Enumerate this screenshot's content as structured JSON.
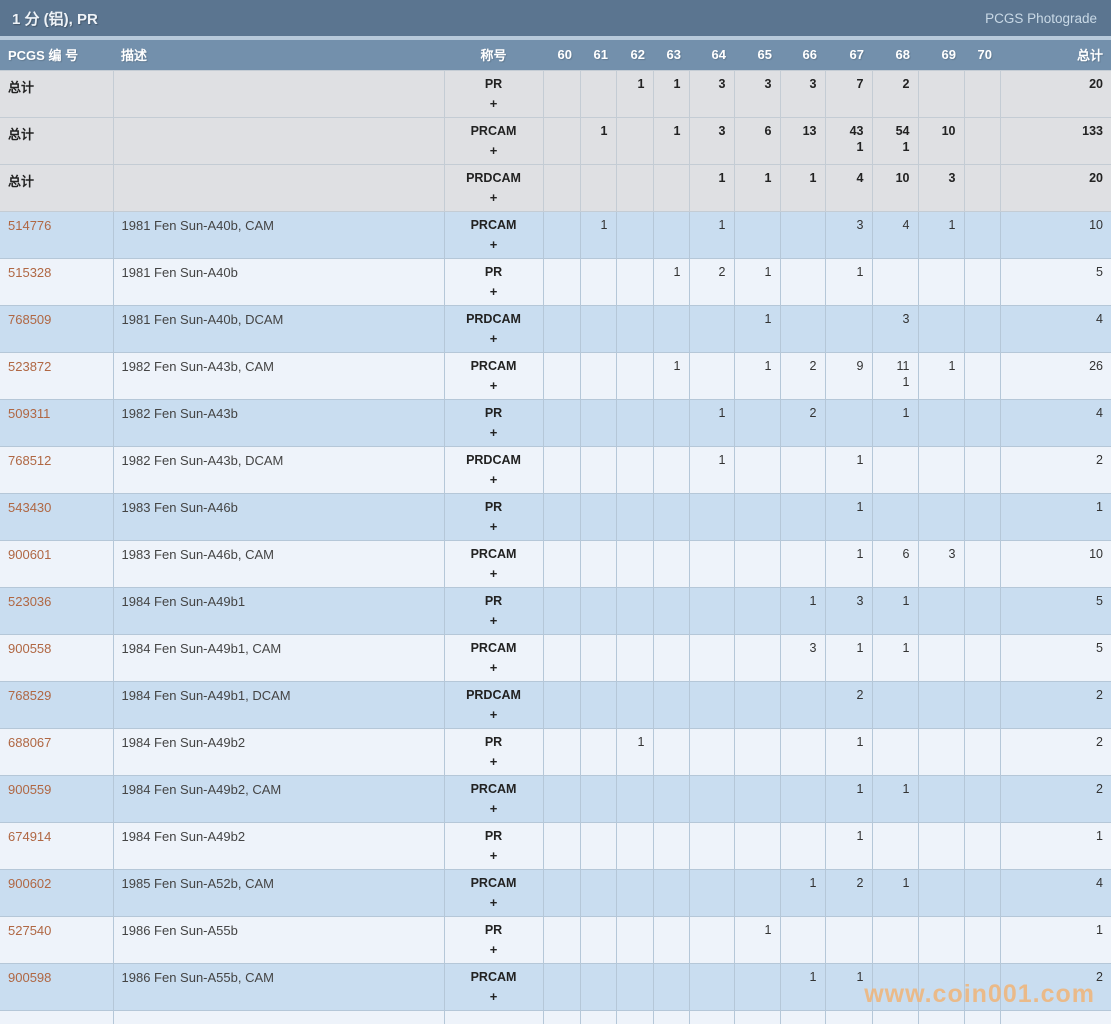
{
  "title_bar": {
    "title": "1 分 (铝), PR",
    "link": "PCGS Photograde"
  },
  "table": {
    "columns": {
      "pcgs_number": "PCGS 编 号",
      "description": "描述",
      "designation": "称号",
      "grades": [
        "60",
        "61",
        "62",
        "63",
        "64",
        "65",
        "66",
        "67",
        "68",
        "69",
        "70"
      ],
      "total": "总计"
    },
    "total_row_label": "总计",
    "plus_symbol": "+",
    "rows": [
      {
        "is_total": true,
        "pcgs": "总计",
        "desc": "",
        "desig": "PR",
        "grades": [
          "",
          "",
          "1",
          "1",
          "3",
          "3",
          "3",
          "7",
          "2",
          "",
          ""
        ],
        "total": "20"
      },
      {
        "is_total": true,
        "pcgs": "总计",
        "desc": "",
        "desig": "PRCAM",
        "grades": [
          "",
          "1",
          "",
          "1",
          "3",
          "6",
          "13",
          "43|1",
          "54|1",
          "10",
          ""
        ],
        "total": "133"
      },
      {
        "is_total": true,
        "pcgs": "总计",
        "desc": "",
        "desig": "PRDCAM",
        "grades": [
          "",
          "",
          "",
          "",
          "1",
          "1",
          "1",
          "4",
          "10",
          "3",
          ""
        ],
        "total": "20"
      },
      {
        "is_total": false,
        "pcgs": "514776",
        "desc": "1981 Fen Sun-A40b, CAM",
        "desig": "PRCAM",
        "grades": [
          "",
          "1",
          "",
          "",
          "1",
          "",
          "",
          "3",
          "4",
          "1",
          ""
        ],
        "total": "10"
      },
      {
        "is_total": false,
        "pcgs": "515328",
        "desc": "1981 Fen Sun-A40b",
        "desig": "PR",
        "grades": [
          "",
          "",
          "",
          "1",
          "2",
          "1",
          "",
          "1",
          "",
          "",
          ""
        ],
        "total": "5"
      },
      {
        "is_total": false,
        "pcgs": "768509",
        "desc": "1981 Fen Sun-A40b, DCAM",
        "desig": "PRDCAM",
        "grades": [
          "",
          "",
          "",
          "",
          "",
          "1",
          "",
          "",
          "3",
          "",
          ""
        ],
        "total": "4"
      },
      {
        "is_total": false,
        "pcgs": "523872",
        "desc": "1982 Fen Sun-A43b, CAM",
        "desig": "PRCAM",
        "grades": [
          "",
          "",
          "",
          "1",
          "",
          "1",
          "2",
          "9",
          "11|1",
          "1",
          ""
        ],
        "total": "26"
      },
      {
        "is_total": false,
        "pcgs": "509311",
        "desc": "1982 Fen Sun-A43b",
        "desig": "PR",
        "grades": [
          "",
          "",
          "",
          "",
          "1",
          "",
          "2",
          "",
          "1",
          "",
          ""
        ],
        "total": "4"
      },
      {
        "is_total": false,
        "pcgs": "768512",
        "desc": "1982 Fen Sun-A43b, DCAM",
        "desig": "PRDCAM",
        "grades": [
          "",
          "",
          "",
          "",
          "1",
          "",
          "",
          "1",
          "",
          "",
          ""
        ],
        "total": "2"
      },
      {
        "is_total": false,
        "pcgs": "543430",
        "desc": "1983 Fen Sun-A46b",
        "desig": "PR",
        "grades": [
          "",
          "",
          "",
          "",
          "",
          "",
          "",
          "1",
          "",
          "",
          ""
        ],
        "total": "1"
      },
      {
        "is_total": false,
        "pcgs": "900601",
        "desc": "1983 Fen Sun-A46b, CAM",
        "desig": "PRCAM",
        "grades": [
          "",
          "",
          "",
          "",
          "",
          "",
          "",
          "1",
          "6",
          "3",
          ""
        ],
        "total": "10"
      },
      {
        "is_total": false,
        "pcgs": "523036",
        "desc": "1984 Fen Sun-A49b1",
        "desig": "PR",
        "grades": [
          "",
          "",
          "",
          "",
          "",
          "",
          "1",
          "3",
          "1",
          "",
          ""
        ],
        "total": "5"
      },
      {
        "is_total": false,
        "pcgs": "900558",
        "desc": "1984 Fen Sun-A49b1, CAM",
        "desig": "PRCAM",
        "grades": [
          "",
          "",
          "",
          "",
          "",
          "",
          "3",
          "1",
          "1",
          "",
          ""
        ],
        "total": "5"
      },
      {
        "is_total": false,
        "pcgs": "768529",
        "desc": "1984 Fen Sun-A49b1, DCAM",
        "desig": "PRDCAM",
        "grades": [
          "",
          "",
          "",
          "",
          "",
          "",
          "",
          "2",
          "",
          "",
          ""
        ],
        "total": "2"
      },
      {
        "is_total": false,
        "pcgs": "688067",
        "desc": "1984 Fen Sun-A49b2",
        "desig": "PR",
        "grades": [
          "",
          "",
          "1",
          "",
          "",
          "",
          "",
          "1",
          "",
          "",
          ""
        ],
        "total": "2"
      },
      {
        "is_total": false,
        "pcgs": "900559",
        "desc": "1984 Fen Sun-A49b2, CAM",
        "desig": "PRCAM",
        "grades": [
          "",
          "",
          "",
          "",
          "",
          "",
          "",
          "1",
          "1",
          "",
          ""
        ],
        "total": "2"
      },
      {
        "is_total": false,
        "pcgs": "674914",
        "desc": "1984 Fen Sun-A49b2",
        "desig": "PR",
        "grades": [
          "",
          "",
          "",
          "",
          "",
          "",
          "",
          "1",
          "",
          "",
          ""
        ],
        "total": "1"
      },
      {
        "is_total": false,
        "pcgs": "900602",
        "desc": "1985 Fen Sun-A52b, CAM",
        "desig": "PRCAM",
        "grades": [
          "",
          "",
          "",
          "",
          "",
          "",
          "1",
          "2",
          "1",
          "",
          ""
        ],
        "total": "4"
      },
      {
        "is_total": false,
        "pcgs": "527540",
        "desc": "1986 Fen Sun-A55b",
        "desig": "PR",
        "grades": [
          "",
          "",
          "",
          "",
          "",
          "1",
          "",
          "",
          "",
          "",
          ""
        ],
        "total": "1"
      },
      {
        "is_total": false,
        "pcgs": "900598",
        "desc": "1986 Fen Sun-A55b, CAM",
        "desig": "PRCAM",
        "grades": [
          "",
          "",
          "",
          "",
          "",
          "",
          "1",
          "1",
          "",
          "",
          ""
        ],
        "total": "2"
      }
    ]
  },
  "watermark": "www.coin001.com",
  "colors": {
    "title_bar_bg": "#5b7590",
    "header_bg": "#7390ac",
    "separator": "#b7c9da",
    "row_blue": "#c9ddf0",
    "row_white": "#eef3fa",
    "row_total": "#dfe0e3",
    "grid_line": "#b5c7d8",
    "link": "#b06743",
    "title_text": "#eef3f8",
    "photograde_link": "#c9d9e6",
    "watermark": "#f0b478"
  }
}
